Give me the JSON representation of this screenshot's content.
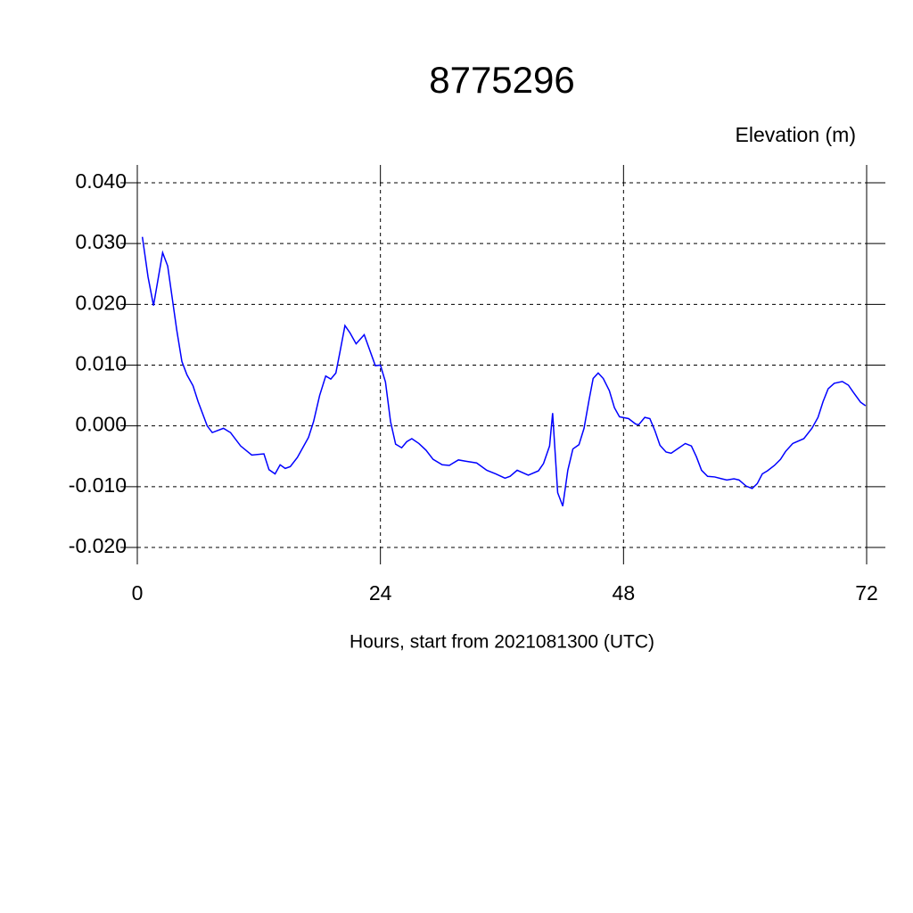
{
  "chart_data": {
    "type": "line",
    "title": "8775296",
    "y_label": "Elevation (m)",
    "x_label": "Hours, start from 2021081300 (UTC)",
    "xlim": [
      0,
      72
    ],
    "xticks": [
      0,
      24,
      48,
      72
    ],
    "ylim": [
      -0.02,
      0.04
    ],
    "yticks": [
      {
        "value": -0.02,
        "label": "-0.020"
      },
      {
        "value": -0.01,
        "label": "-0.010"
      },
      {
        "value": 0,
        "label": "0.000"
      },
      {
        "value": 0.01,
        "label": "0.010"
      },
      {
        "value": 0.02,
        "label": "0.020"
      },
      {
        "value": 0.03,
        "label": "0.030"
      },
      {
        "value": 0.04,
        "label": "0.040"
      }
    ],
    "grid": true,
    "series": [
      {
        "color": "#0000ff",
        "x": [
          0.5,
          1.06,
          1.6,
          2.5,
          3.0,
          3.9,
          4.4,
          4.9,
          5.5,
          6.0,
          6.9,
          7.4,
          8.5,
          9.2,
          10.2,
          11.3,
          12.5,
          13.0,
          13.6,
          14.1,
          14.6,
          15.1,
          15.8,
          16.9,
          17.4,
          18.0,
          18.6,
          19.1,
          19.6,
          20.0,
          20.5,
          21.0,
          21.6,
          22.4,
          23.5,
          24.0,
          24.5,
          25.0,
          25.5,
          26.1,
          26.6,
          27.1,
          27.8,
          28.5,
          29.2,
          30.1,
          30.8,
          31.7,
          32.4,
          33.5,
          34.5,
          35.4,
          36.3,
          36.8,
          37.5,
          38.6,
          39.6,
          40.1,
          40.7,
          41.0,
          41.5,
          42.0,
          42.5,
          43.0,
          43.6,
          44.1,
          44.6,
          45.0,
          45.5,
          46.0,
          46.6,
          47.1,
          47.6,
          48.5,
          49.2,
          49.5,
          50.1,
          50.6,
          51.1,
          51.6,
          52.2,
          52.7,
          53.4,
          54.1,
          54.7,
          55.2,
          55.7,
          56.3,
          57.0,
          57.7,
          58.2,
          58.9,
          59.4,
          60.1,
          60.7,
          61.2,
          61.7,
          62.2,
          62.9,
          63.5,
          64.0,
          64.7,
          65.8,
          66.6,
          67.2,
          67.7,
          68.2,
          68.8,
          69.6,
          70.2,
          70.7,
          71.4,
          71.9
        ],
        "values": [
          0.0311,
          0.0245,
          0.0198,
          0.0285,
          0.0263,
          0.0157,
          0.0106,
          0.0084,
          0.0066,
          0.004,
          0.0,
          -0.0011,
          -0.0004,
          -0.0011,
          -0.0033,
          -0.0048,
          -0.0046,
          -0.0072,
          -0.0079,
          -0.0064,
          -0.007,
          -0.0067,
          -0.0052,
          -0.0019,
          0.0007,
          0.005,
          0.0082,
          0.0077,
          0.0087,
          0.0121,
          0.0165,
          0.0153,
          0.0135,
          0.015,
          0.0099,
          0.01,
          0.0072,
          0.0007,
          -0.003,
          -0.0036,
          -0.0026,
          -0.0021,
          -0.0029,
          -0.004,
          -0.0055,
          -0.0064,
          -0.0065,
          -0.0056,
          -0.0058,
          -0.0061,
          -0.0073,
          -0.0079,
          -0.0086,
          -0.0083,
          -0.0073,
          -0.0081,
          -0.0074,
          -0.0062,
          -0.0033,
          0.0021,
          -0.011,
          -0.0132,
          -0.0073,
          -0.0038,
          -0.0031,
          -0.0004,
          0.0043,
          0.0078,
          0.0087,
          0.0078,
          0.0058,
          0.003,
          0.0015,
          0.0012,
          0.0003,
          0.0002,
          0.0014,
          0.0012,
          -0.0008,
          -0.0032,
          -0.0043,
          -0.0045,
          -0.0037,
          -0.0029,
          -0.0033,
          -0.0051,
          -0.0073,
          -0.0083,
          -0.0084,
          -0.0087,
          -0.0089,
          -0.0087,
          -0.0089,
          -0.0099,
          -0.0103,
          -0.0095,
          -0.0079,
          -0.0074,
          -0.0065,
          -0.0055,
          -0.0042,
          -0.0029,
          -0.0021,
          -0.0004,
          0.0014,
          0.004,
          0.0061,
          0.007,
          0.0073,
          0.0067,
          0.0055,
          0.0039,
          0.0033
        ]
      }
    ]
  }
}
